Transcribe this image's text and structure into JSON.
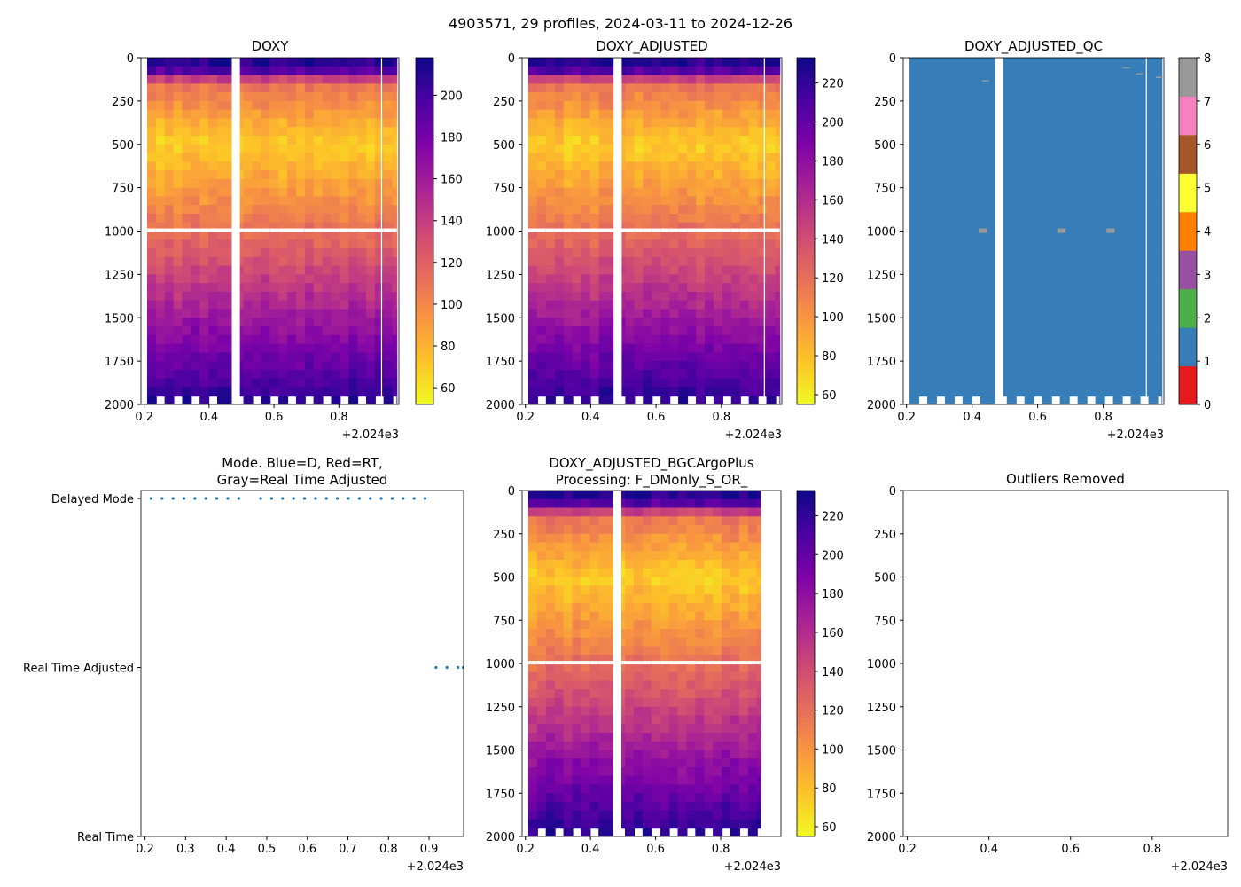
{
  "figure": {
    "suptitle": "4903571, 29 profiles, 2024-03-11 to 2024-12-26"
  },
  "colors": {
    "plasma": [
      "#f0f921",
      "#fdc328",
      "#f89441",
      "#e56b5d",
      "#cc4778",
      "#a82296",
      "#7e03a8",
      "#4c02a1",
      "#0d0887"
    ],
    "qc": [
      "#e41a1c",
      "#377eb8",
      "#4daf4a",
      "#984ea3",
      "#ff7f00",
      "#ffff33",
      "#a65628",
      "#f781bf",
      "#999999"
    ],
    "mode_dot": "#1f77b4",
    "gap": "#ffffff"
  },
  "chart_data": [
    {
      "id": "doxy",
      "type": "heatmap",
      "title": "DOXY",
      "x_ticks": [
        "0.2",
        "0.4",
        "0.6",
        "0.8"
      ],
      "x_tick_values": [
        0.2,
        0.4,
        0.6,
        0.8
      ],
      "x_offset": "+2.024e3",
      "xlim": [
        0.19,
        0.985
      ],
      "y_ticks": [
        "0",
        "250",
        "500",
        "750",
        "1000",
        "1250",
        "1500",
        "1750",
        "2000"
      ],
      "ylim": [
        2000,
        0
      ],
      "colorbar": {
        "ticks": [
          "60",
          "80",
          "100",
          "120",
          "140",
          "160",
          "180",
          "200"
        ],
        "tick_values": [
          60,
          80,
          100,
          120,
          140,
          160,
          180,
          200
        ],
        "range": [
          52,
          218
        ]
      },
      "gap_x": [
        0.47,
        0.495
      ],
      "profile_x_end": 0.985
    },
    {
      "id": "doxy_adjusted",
      "type": "heatmap",
      "title": "DOXY_ADJUSTED",
      "x_ticks": [
        "0.2",
        "0.4",
        "0.6",
        "0.8"
      ],
      "x_tick_values": [
        0.2,
        0.4,
        0.6,
        0.8
      ],
      "x_offset": "+2.024e3",
      "xlim": [
        0.19,
        0.985
      ],
      "y_ticks": [
        "0",
        "250",
        "500",
        "750",
        "1000",
        "1250",
        "1500",
        "1750",
        "2000"
      ],
      "ylim": [
        2000,
        0
      ],
      "colorbar": {
        "ticks": [
          "60",
          "80",
          "100",
          "120",
          "140",
          "160",
          "180",
          "200",
          "220"
        ],
        "tick_values": [
          60,
          80,
          100,
          120,
          140,
          160,
          180,
          200,
          220
        ],
        "range": [
          55,
          233
        ]
      },
      "gap_x": [
        0.47,
        0.495
      ],
      "profile_x_end": 0.985
    },
    {
      "id": "doxy_adjusted_qc",
      "type": "heatmap",
      "title": "DOXY_ADJUSTED_QC",
      "x_ticks": [
        "0.2",
        "0.4",
        "0.6",
        "0.8"
      ],
      "x_tick_values": [
        0.2,
        0.4,
        0.6,
        0.8
      ],
      "x_offset": "+2.024e3",
      "xlim": [
        0.19,
        0.985
      ],
      "y_ticks": [
        "0",
        "250",
        "500",
        "750",
        "1000",
        "1250",
        "1500",
        "1750",
        "2000"
      ],
      "ylim": [
        2000,
        0
      ],
      "qc_value": 1,
      "qc_flags_at_1000": [
        0.42,
        0.66,
        0.81
      ],
      "colorbar": {
        "ticks": [
          "0",
          "1",
          "2",
          "3",
          "4",
          "5",
          "6",
          "7",
          "8"
        ],
        "tick_values": [
          0,
          1,
          2,
          3,
          4,
          5,
          6,
          7,
          8
        ],
        "range": [
          0,
          8
        ]
      },
      "gap_x": [
        0.47,
        0.495
      ],
      "profile_x_end": 0.985
    },
    {
      "id": "mode",
      "type": "scatter",
      "title": "Mode. Blue=D, Red=RT,\nGray=Real Time Adjusted",
      "title_lines": [
        "Mode. Blue=D, Red=RT,",
        "Gray=Real Time Adjusted"
      ],
      "x_ticks": [
        "0.2",
        "0.3",
        "0.4",
        "0.5",
        "0.6",
        "0.7",
        "0.8",
        "0.9"
      ],
      "x_tick_values": [
        0.2,
        0.3,
        0.4,
        0.5,
        0.6,
        0.7,
        0.8,
        0.9
      ],
      "x_offset": "+2.024e3",
      "xlim": [
        0.19,
        0.985
      ],
      "y_ticks": [
        "Delayed Mode",
        "Real Time Adjusted",
        "Real Time"
      ],
      "y_tick_values": [
        2,
        1,
        0
      ],
      "points_x": [
        0.215,
        0.242,
        0.269,
        0.296,
        0.323,
        0.35,
        0.377,
        0.404,
        0.431,
        0.485,
        0.512,
        0.539,
        0.566,
        0.593,
        0.62,
        0.647,
        0.674,
        0.701,
        0.728,
        0.755,
        0.782,
        0.809,
        0.836,
        0.863,
        0.89,
        0.917,
        0.944,
        0.971,
        0.984
      ],
      "points_y": [
        2,
        2,
        2,
        2,
        2,
        2,
        2,
        2,
        2,
        2,
        2,
        2,
        2,
        2,
        2,
        2,
        2,
        2,
        2,
        2,
        2,
        2,
        2,
        2,
        2,
        1,
        1,
        1,
        1
      ]
    },
    {
      "id": "doxy_bgc",
      "type": "heatmap",
      "title": "DOXY_ADJUSTED_BGCArgoPlus\nProcessing: F_DMonly_S_OR_",
      "title_lines": [
        "DOXY_ADJUSTED_BGCArgoPlus",
        "Processing: F_DMonly_S_OR_"
      ],
      "x_ticks": [
        "0.2",
        "0.4",
        "0.6",
        "0.8"
      ],
      "x_tick_values": [
        0.2,
        0.4,
        0.6,
        0.8
      ],
      "x_offset": "+2.024e3",
      "xlim": [
        0.19,
        0.985
      ],
      "y_ticks": [
        "0",
        "250",
        "500",
        "750",
        "1000",
        "1250",
        "1500",
        "1750",
        "2000"
      ],
      "ylim": [
        2000,
        0
      ],
      "colorbar": {
        "ticks": [
          "60",
          "80",
          "100",
          "120",
          "140",
          "160",
          "180",
          "200",
          "220"
        ],
        "tick_values": [
          60,
          80,
          100,
          120,
          140,
          160,
          180,
          200,
          220
        ],
        "range": [
          55,
          233
        ]
      },
      "gap_x": [
        0.47,
        0.495
      ],
      "profile_x_end": 0.93
    },
    {
      "id": "outliers",
      "type": "scatter",
      "title": "Outliers Removed",
      "x_ticks": [
        "0.2",
        "0.4",
        "0.6",
        "0.8"
      ],
      "x_tick_values": [
        0.2,
        0.4,
        0.6,
        0.8
      ],
      "x_offset": "+2.024e3",
      "xlim": [
        0.19,
        0.985
      ],
      "y_ticks": [
        "0",
        "250",
        "500",
        "750",
        "1000",
        "1250",
        "1500",
        "1750",
        "2000"
      ],
      "ylim": [
        2000,
        0
      ],
      "points_x": [],
      "points_y": []
    }
  ]
}
